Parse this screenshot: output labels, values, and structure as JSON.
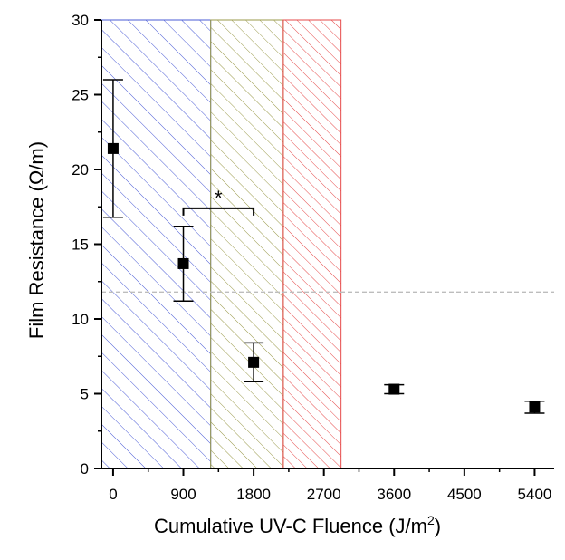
{
  "chart_data": {
    "type": "scatter",
    "xlabel": "Cumulative UV-C Fluence (J/m",
    "xlabel_sup": "2",
    "xlabel_tail": ")",
    "ylabel": "Film Resistance (Ω/m)",
    "xlim": [
      -150,
      5650
    ],
    "ylim": [
      0,
      30
    ],
    "xticks": [
      "0",
      "900",
      "1800",
      "2700",
      "3600",
      "4500",
      "5400"
    ],
    "yticks": [
      "0",
      "5",
      "10",
      "15",
      "20",
      "25",
      "30"
    ],
    "grid": false,
    "legend": "none",
    "points": [
      {
        "x": 0,
        "y": 21.4,
        "err": 4.6
      },
      {
        "x": 900,
        "y": 13.7,
        "err": 2.5
      },
      {
        "x": 1800,
        "y": 7.1,
        "err": 1.3
      },
      {
        "x": 3600,
        "y": 5.3,
        "err": 0.3
      },
      {
        "x": 5400,
        "y": 4.1,
        "err": 0.4
      }
    ],
    "regions": [
      {
        "from": -150,
        "to": 1250,
        "color": "#4a5bd6"
      },
      {
        "from": 1250,
        "to": 2180,
        "color": "#9a9a4a"
      },
      {
        "from": 2180,
        "to": 2920,
        "color": "#e64a4a"
      }
    ],
    "reference_line": {
      "y": 11.8,
      "color": "#bdbdbd"
    },
    "significance": {
      "x1": 900,
      "x2": 1800,
      "y": 17.4,
      "label": "*"
    }
  }
}
